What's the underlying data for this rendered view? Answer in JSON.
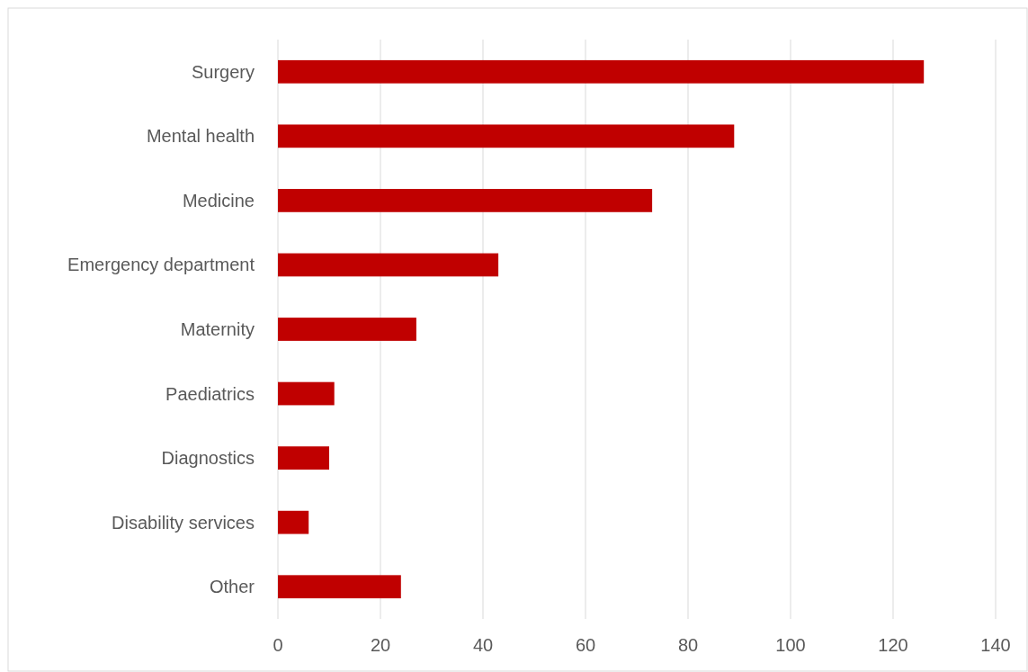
{
  "chart_data": {
    "type": "bar",
    "orientation": "horizontal",
    "categories": [
      "Surgery",
      "Mental health",
      "Medicine",
      "Emergency department",
      "Maternity",
      "Paediatrics",
      "Diagnostics",
      "Disability services",
      "Other"
    ],
    "values": [
      126,
      89,
      73,
      43,
      27,
      11,
      10,
      6,
      24
    ],
    "color": "#c00000",
    "xlim": [
      0,
      140
    ],
    "xticks": [
      0,
      20,
      40,
      60,
      80,
      100,
      120,
      140
    ],
    "grid": "x"
  }
}
